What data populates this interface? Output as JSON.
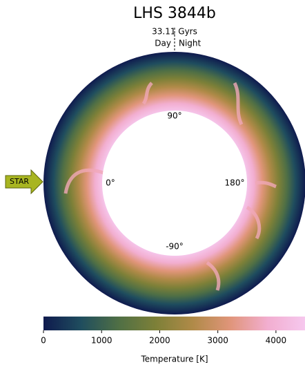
{
  "chart_data": {
    "type": "annulus",
    "title": "LHS 3844b",
    "time_label": "33.11 Gyrs",
    "day_label": "Day",
    "night_label": "Night",
    "star_label": "STAR",
    "angle_labels": [
      "0°",
      "90°",
      "180°",
      "-90°"
    ],
    "colorbar_label": "Temperature [K]",
    "clim": [
      0,
      4500
    ],
    "cticks": [
      0,
      1000,
      2000,
      3000,
      4000
    ],
    "colormap": [
      "#0f1a4e",
      "#1f4d5e",
      "#4f6f45",
      "#7d8038",
      "#b08a48",
      "#e0957a",
      "#f2aed0",
      "#f6c8ee"
    ]
  }
}
